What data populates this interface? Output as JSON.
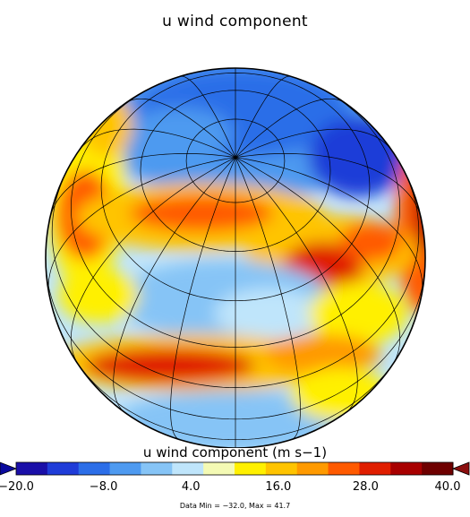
{
  "title": "u wind component",
  "colorbar": {
    "label": "u wind component (m s−1)",
    "ticks": [
      "−20.0",
      "−8.0",
      "4.0",
      "16.0",
      "28.0",
      "40.0"
    ],
    "min": -20.0,
    "max": 40.0,
    "colors": [
      "#1a0fa8",
      "#1f3cd8",
      "#2c6ee8",
      "#4e9af0",
      "#86c4f6",
      "#bfe5fb",
      "#f4fab4",
      "#fff000",
      "#ffc400",
      "#ff9a00",
      "#ff5a00",
      "#e01e00",
      "#a80000",
      "#6e0000"
    ],
    "under_color": "#0a0a9e",
    "over_color": "#8b0f0f"
  },
  "footnote": "Data Min = −32.0, Max = 41.7"
}
